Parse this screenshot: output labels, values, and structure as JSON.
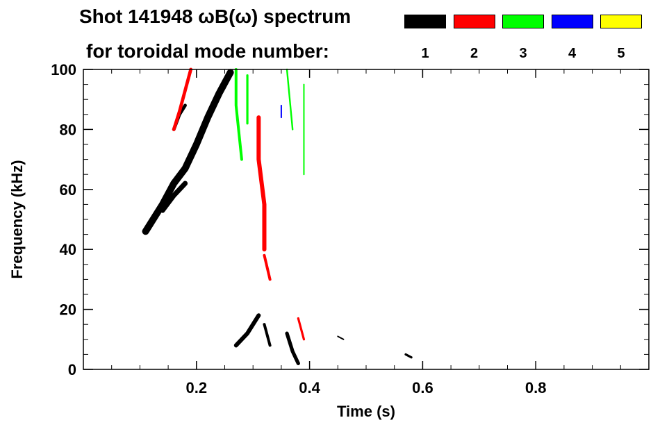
{
  "chart_data": {
    "type": "heatmap",
    "title_line1": "Shot 141948 ωB(ω) spectrum",
    "title_line2": "for toroidal mode number:",
    "xlabel": "Time (s)",
    "ylabel": "Frequency (kHz)",
    "xlim": [
      0.0,
      1.0
    ],
    "ylim": [
      0,
      100
    ],
    "x_ticks": [
      0.2,
      0.4,
      0.6,
      0.8
    ],
    "x_tick_labels": [
      "0.2",
      "0.4",
      "0.6",
      "0.8"
    ],
    "y_ticks": [
      0,
      20,
      40,
      60,
      80,
      100
    ],
    "y_tick_labels": [
      "0",
      "20",
      "40",
      "60",
      "80",
      "100"
    ],
    "legend": [
      {
        "label": "1",
        "color": "#000000"
      },
      {
        "label": "2",
        "color": "#ff0000"
      },
      {
        "label": "3",
        "color": "#00ff00"
      },
      {
        "label": "4",
        "color": "#0000ff"
      },
      {
        "label": "5",
        "color": "#ffff00"
      }
    ],
    "features": [
      {
        "mode": "1",
        "color": "#000000",
        "t": [
          0.11,
          0.14,
          0.16,
          0.18,
          0.2,
          0.22,
          0.24,
          0.26
        ],
        "f": [
          46,
          55,
          62,
          67,
          75,
          84,
          92,
          99
        ],
        "spread": 2.5
      },
      {
        "mode": "1",
        "color": "#000000",
        "t": [
          0.14,
          0.16,
          0.18
        ],
        "f": [
          53,
          58,
          62
        ],
        "spread": 1.8
      },
      {
        "mode": "1",
        "color": "#000000",
        "t": [
          0.16,
          0.17,
          0.18
        ],
        "f": [
          80,
          85,
          88
        ],
        "spread": 1.2
      },
      {
        "mode": "2",
        "color": "#ff0000",
        "t": [
          0.16,
          0.17,
          0.18,
          0.19
        ],
        "f": [
          80,
          86,
          93,
          100
        ],
        "spread": 1.2
      },
      {
        "mode": "2",
        "color": "#ff0000",
        "t": [
          0.31,
          0.31,
          0.32,
          0.32
        ],
        "f": [
          84,
          70,
          55,
          40
        ],
        "spread": 1.5
      },
      {
        "mode": "2",
        "color": "#ff0000",
        "t": [
          0.32,
          0.33
        ],
        "f": [
          38,
          30
        ],
        "spread": 1.0
      },
      {
        "mode": "2",
        "color": "#ff0000",
        "t": [
          0.38,
          0.39
        ],
        "f": [
          17,
          10
        ],
        "spread": 0.8
      },
      {
        "mode": "3",
        "color": "#00ff00",
        "t": [
          0.27,
          0.27,
          0.28
        ],
        "f": [
          100,
          88,
          70
        ],
        "spread": 1.0
      },
      {
        "mode": "3",
        "color": "#00ff00",
        "t": [
          0.29,
          0.29
        ],
        "f": [
          98,
          82
        ],
        "spread": 0.8
      },
      {
        "mode": "3",
        "color": "#00ff00",
        "t": [
          0.36,
          0.37
        ],
        "f": [
          100,
          80
        ],
        "spread": 0.6
      },
      {
        "mode": "3",
        "color": "#00ff00",
        "t": [
          0.39,
          0.39
        ],
        "f": [
          95,
          65
        ],
        "spread": 0.5
      },
      {
        "mode": "4",
        "color": "#0000ff",
        "t": [
          0.35,
          0.35
        ],
        "f": [
          88,
          84
        ],
        "spread": 0.4
      },
      {
        "mode": "1",
        "color": "#000000",
        "t": [
          0.27,
          0.29,
          0.31
        ],
        "f": [
          8,
          12,
          18
        ],
        "spread": 1.5
      },
      {
        "mode": "1",
        "color": "#000000",
        "t": [
          0.32,
          0.33
        ],
        "f": [
          15,
          8
        ],
        "spread": 1.0
      },
      {
        "mode": "1",
        "color": "#000000",
        "t": [
          0.36,
          0.37,
          0.38
        ],
        "f": [
          12,
          6,
          2
        ],
        "spread": 1.3
      },
      {
        "mode": "1",
        "color": "#000000",
        "t": [
          0.57,
          0.58
        ],
        "f": [
          5,
          4
        ],
        "spread": 0.8
      },
      {
        "mode": "1",
        "color": "#000000",
        "t": [
          0.45,
          0.46
        ],
        "f": [
          11,
          10
        ],
        "spread": 0.5
      }
    ]
  }
}
